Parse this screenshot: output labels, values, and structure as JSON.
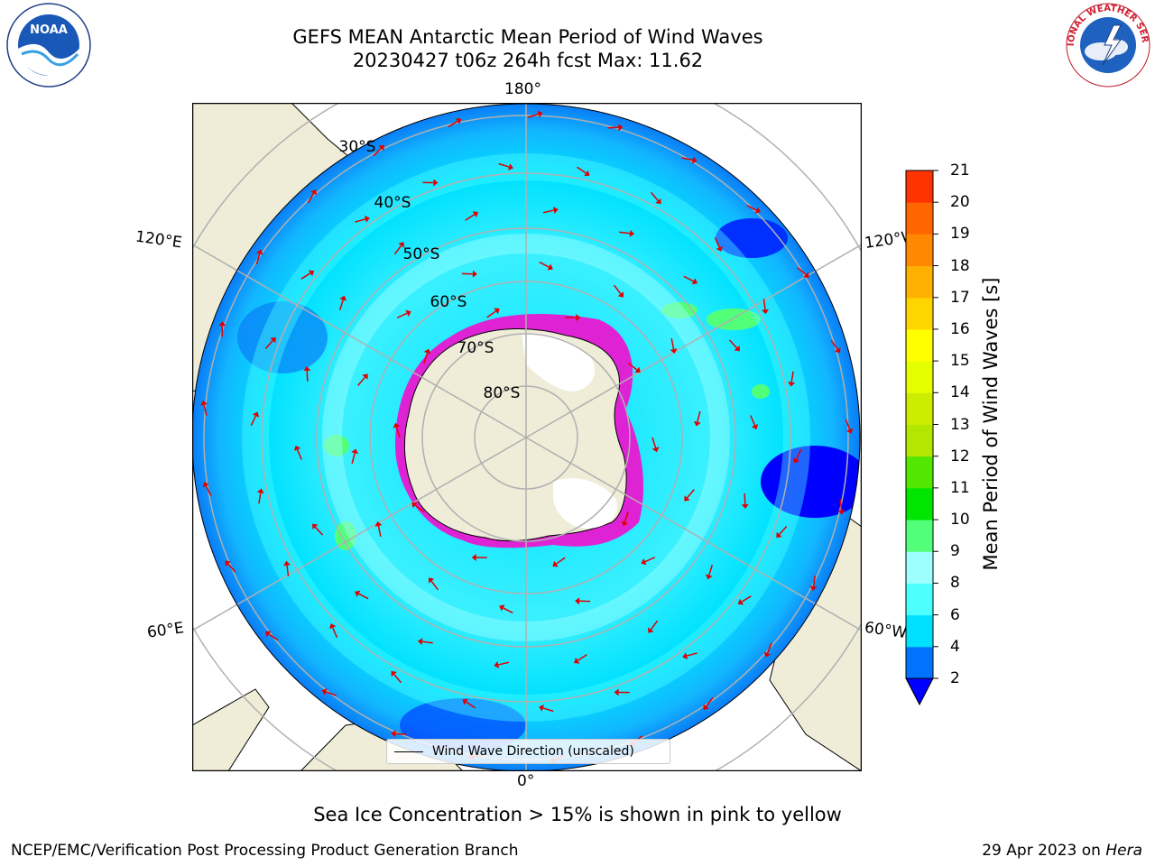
{
  "title": {
    "line1": "GEFS MEAN Antarctic Mean Period of Wind Waves",
    "line2": "20230427 t06z 264h fcst   Max: 11.62"
  },
  "map": {
    "longitude_labels": {
      "top": "180°",
      "bottom": "0°",
      "upper_left": "120°E",
      "upper_right": "120°W",
      "lower_left": "60°E",
      "lower_right": "60°W"
    },
    "latitude_labels": [
      "30°S",
      "40°S",
      "50°S",
      "60°S",
      "70°S",
      "80°S"
    ],
    "legend_label": "Wind Wave Direction (unscaled)"
  },
  "colorbar": {
    "label": "Mean Period of Wind Waves [s]",
    "ticks": [
      2,
      4,
      6,
      8,
      9,
      10,
      11,
      12,
      13,
      14,
      15,
      16,
      17,
      18,
      19,
      20,
      21
    ],
    "colors": [
      "#0073ff",
      "#00e1ff",
      "#4dffff",
      "#9effff",
      "#52ff79",
      "#00e600",
      "#52e600",
      "#b3e600",
      "#cced00",
      "#e6ff00",
      "#ffff00",
      "#ffd500",
      "#ffb000",
      "#ff8800",
      "#ff6600",
      "#ff3300",
      "#ff0000"
    ],
    "under_color": "#0000ff"
  },
  "footnote": "Sea Ice Concentration > 15% is shown in pink to yellow",
  "credit": "NCEP/EMC/Verification Post Processing Product Generation Branch",
  "date_prefix": "29 Apr 2023 on ",
  "machine": "Hera",
  "logos": {
    "noaa": "NOAA",
    "nws_text": "NATIONAL WEATHER SERVICE"
  }
}
